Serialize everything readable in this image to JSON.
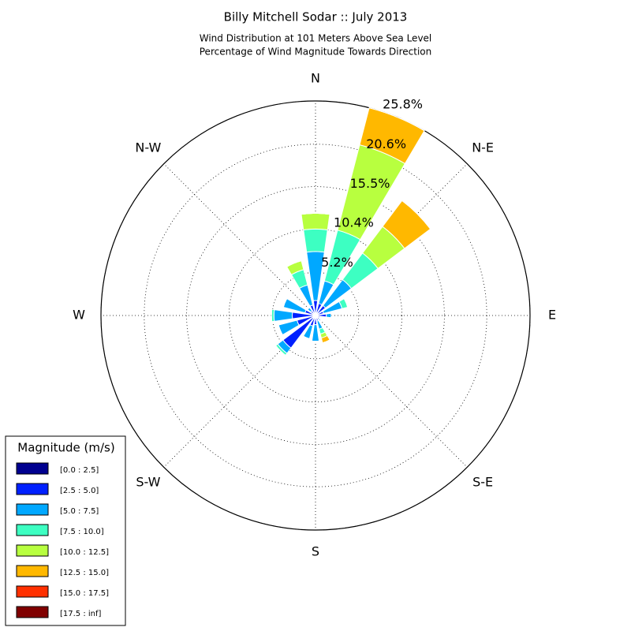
{
  "chart_data": {
    "type": "windrose",
    "title": "Billy Mitchell Sodar :: July 2013",
    "subtitle": [
      "Wind Distribution at 101 Meters Above Sea Level",
      "Percentage of Wind Magnitude Towards Direction"
    ],
    "legend_title": "Magnitude (m/s)",
    "legend": "lower left",
    "grid": true,
    "categories": [
      null,
      null,
      null,
      null,
      null,
      null,
      null,
      null,
      null,
      null,
      null,
      null,
      null,
      null,
      null,
      null
    ],
    "rlim": [
      0,
      25.8
    ],
    "rticks": [
      {
        "value": 5.2,
        "label": "5.2%"
      },
      {
        "value": 10.4,
        "label": "10.4%"
      },
      {
        "value": 15.5,
        "label": "15.5%"
      },
      {
        "value": 20.6,
        "label": "20.6%"
      },
      {
        "value": 25.8,
        "label": "25.8%"
      }
    ],
    "angle_ticks": [
      {
        "value": 0,
        "label": "N"
      },
      {
        "value": 45,
        "label": "N-E"
      },
      {
        "value": 90,
        "label": "E"
      },
      {
        "value": 135,
        "label": "S-E"
      },
      {
        "value": 180,
        "label": "S"
      },
      {
        "value": 225,
        "label": "S-W"
      },
      {
        "value": 270,
        "label": "W"
      },
      {
        "value": 315,
        "label": "N-W"
      }
    ],
    "series": [
      {
        "name": "[0.0 : 2.5]",
        "color": "#00008f",
        "values": [
          0.3,
          0.3,
          0.3,
          0.2,
          0.3,
          0.2,
          0.2,
          0.2,
          0.3,
          0.3,
          0.4,
          0.3,
          0.3,
          0.3,
          0.2,
          0.3
        ]
      },
      {
        "name": "[2.5 : 5.0]",
        "color": "#0020ff",
        "values": [
          1.5,
          1.2,
          1.2,
          0.8,
          1.0,
          0.4,
          0.4,
          0.5,
          0.8,
          1.0,
          4.5,
          2.0,
          2.5,
          1.0,
          0.5,
          1.0
        ]
      },
      {
        "name": "[5.0 : 7.5]",
        "color": "#00a8ff",
        "values": [
          5.9,
          2.8,
          3.9,
          2.3,
          0.6,
          0,
          0.2,
          1.0,
          2.0,
          1.6,
          0.8,
          2.3,
          2.2,
          2.7,
          0.5,
          2.5
        ]
      },
      {
        "name": "[7.5 : 10.0]",
        "color": "#3dffc2",
        "values": [
          2.7,
          6.3,
          4.0,
          0.7,
          0,
          0,
          0,
          0.6,
          0,
          0,
          0.3,
          0,
          0.3,
          0,
          0,
          1.9
        ]
      },
      {
        "name": "[10.0 : 12.5]",
        "color": "#b8ff3f",
        "values": [
          1.9,
          10.6,
          4.0,
          0,
          0,
          0,
          0,
          0.5,
          0,
          0,
          0,
          0,
          0,
          0,
          0,
          1.1
        ]
      },
      {
        "name": "[12.5 : 15.0]",
        "color": "#ffb800",
        "values": [
          0,
          4.6,
          3.9,
          0,
          0,
          0,
          0,
          0.6,
          0,
          0,
          0,
          0,
          0,
          0,
          0,
          0
        ]
      },
      {
        "name": "[15.0 : 17.5]",
        "color": "#ff3000",
        "values": [
          0,
          0,
          0,
          0,
          0,
          0,
          0,
          0,
          0,
          0,
          0,
          0,
          0,
          0,
          0,
          0
        ]
      },
      {
        "name": "[17.5 : inf]",
        "color": "#800000",
        "values": [
          0,
          0,
          0,
          0,
          0,
          0,
          0,
          0,
          0,
          0,
          0,
          0,
          0,
          0,
          0,
          0
        ]
      }
    ]
  }
}
